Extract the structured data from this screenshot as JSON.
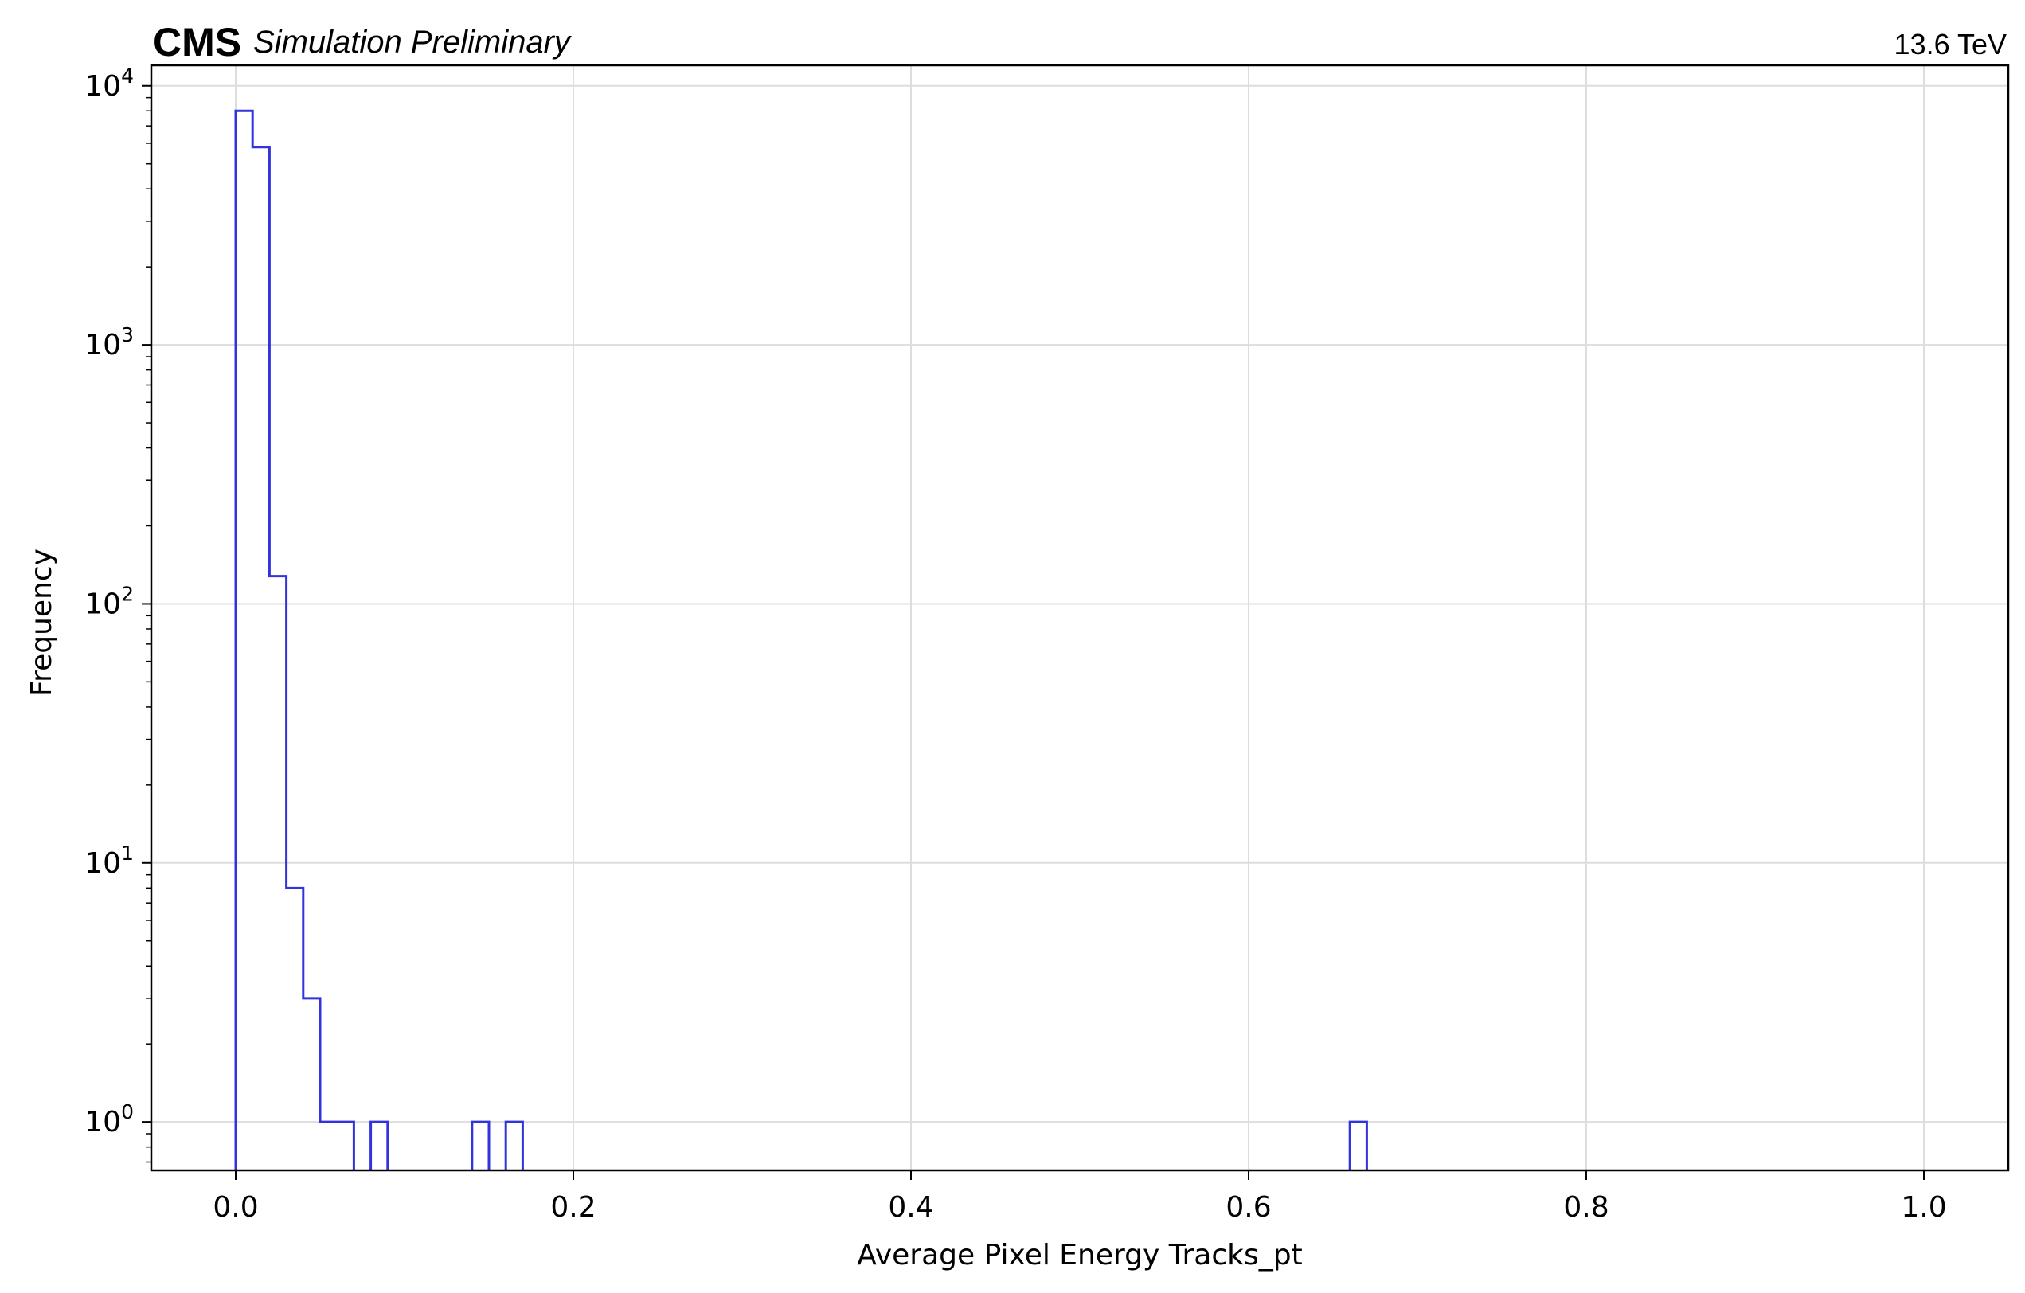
{
  "header": {
    "experiment": "CMS",
    "status": "Simulation Preliminary",
    "energy": "13.6 TeV"
  },
  "chart_data": {
    "type": "histogram",
    "xlabel": "Average Pixel Energy Tracks_pt",
    "ylabel": "Frequency",
    "xlim": [
      -0.05,
      1.05
    ],
    "ylim": [
      0.65,
      12000
    ],
    "yscale": "log",
    "grid": true,
    "color": "#3333dd",
    "histtype": "step",
    "bin_edges": [
      0.0,
      0.01,
      0.02,
      0.03,
      0.04,
      0.05,
      0.06,
      0.07,
      0.08,
      0.09,
      0.14,
      0.15,
      0.16,
      0.17,
      0.66,
      0.67
    ],
    "counts": [
      8000,
      5800,
      128,
      8,
      3,
      1,
      1,
      0,
      1,
      0,
      1,
      0,
      1,
      0,
      1
    ],
    "x_ticks": [
      "0.0",
      "0.2",
      "0.4",
      "0.6",
      "0.8",
      "1.0"
    ],
    "x_tick_values": [
      0.0,
      0.2,
      0.4,
      0.6,
      0.8,
      1.0
    ],
    "y_ticks": [
      {
        "value": 1,
        "base": "10",
        "exp": "0"
      },
      {
        "value": 10,
        "base": "10",
        "exp": "1"
      },
      {
        "value": 100,
        "base": "10",
        "exp": "2"
      },
      {
        "value": 1000,
        "base": "10",
        "exp": "3"
      },
      {
        "value": 10000,
        "base": "10",
        "exp": "4"
      }
    ]
  }
}
